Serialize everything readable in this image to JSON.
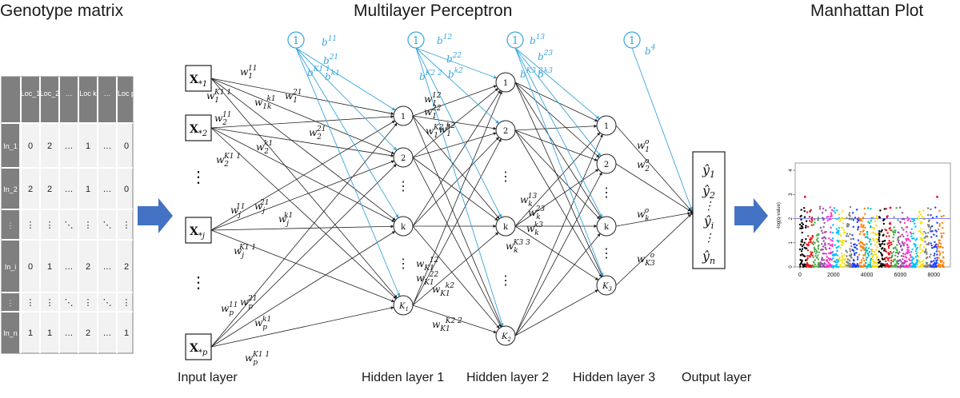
{
  "titles": {
    "genotype": "Genotype matrix",
    "mlp": "Multilayer Perceptron",
    "manhattan": "Manhattan Plot"
  },
  "layer_labels": {
    "input": "Input layer",
    "hidden1": "Hidden layer 1",
    "hidden2": "Hidden layer 2",
    "hidden3": "Hidden layer 3",
    "output": "Output layer"
  },
  "genotype_matrix": {
    "header": [
      "Loc_1",
      "Loc_2",
      "…",
      "Loc k",
      "…",
      "Loc p"
    ],
    "rows": [
      {
        "label": "In_1",
        "values": [
          "0",
          "2",
          "…",
          "1",
          "…",
          "0"
        ]
      },
      {
        "label": "In_2",
        "values": [
          "2",
          "2",
          "…",
          "1",
          "…",
          "0"
        ]
      },
      {
        "label": "⋮",
        "values": [
          "⋮",
          "⋮",
          "⋱",
          "⋮",
          "⋱",
          "⋮"
        ]
      },
      {
        "label": "In_i",
        "values": [
          "0",
          "1",
          "…",
          "2",
          "…",
          "2"
        ]
      },
      {
        "label": "⋮",
        "values": [
          "⋮",
          "⋮",
          "⋱",
          "⋮",
          "⋱",
          "⋮"
        ]
      },
      {
        "label": "In_n",
        "values": [
          "1",
          "1",
          "…",
          "2",
          "…",
          "1"
        ]
      }
    ]
  },
  "network": {
    "inputs": [
      "X*1",
      "X*2",
      "X*j",
      "X*p"
    ],
    "hidden1": [
      "1",
      "2",
      "k",
      "K1"
    ],
    "hidden2": [
      "1",
      "2",
      "k",
      "K2"
    ],
    "hidden3": [
      "1",
      "2",
      "k",
      "K3"
    ],
    "bias_node_label": "1",
    "bias_labels": [
      "b^11",
      "b^21",
      "b^K1 1",
      "b^k1",
      "b^12",
      "b^22",
      "b^K2 2",
      "b^k2",
      "b^13",
      "b^23",
      "b^K3 3",
      "b^k3",
      "b^4"
    ],
    "outputs": [
      "ŷ1",
      "ŷ2",
      "⋮",
      "ŷi",
      "⋮",
      "ŷn"
    ],
    "weight_labels": [
      "w1^11",
      "w1^K1 1",
      "w1k^k1",
      "w1^21",
      "w2^11",
      "w2^21",
      "w2^k1",
      "w2^K1 1",
      "wj^11",
      "wj^21",
      "wj^k1",
      "wj^K1 1",
      "wp^21",
      "wp^k1",
      "wp^11",
      "wp^K1 1",
      "w1^12",
      "w1^22",
      "w1^K2 2",
      "w1^k2",
      "wK1^12",
      "wK1^22",
      "wK1^k2",
      "wK1^K2 2",
      "wk^13",
      "wk^23",
      "wk^k3",
      "wk^K3 3",
      "w1^o",
      "w2^o",
      "wk^o",
      "wK3^o"
    ]
  },
  "manhattan": {
    "ylabel": "-log(q-value)",
    "yticks": [
      "0",
      "1",
      "2",
      "3",
      "4"
    ],
    "xticks": [
      "0",
      "2000",
      "4000",
      "6000",
      "8000"
    ],
    "threshold": 2,
    "colors": [
      "#000000",
      "#e41a1c",
      "#4daf4a",
      "#984ea3",
      "#ff33cc",
      "#00bfff",
      "#f5e31a",
      "#7f7f7f",
      "#1f3fff",
      "#ff7f00",
      "#00c0c0",
      "#ffd700"
    ]
  },
  "colors": {
    "bias_blue": "#3aa6dc",
    "arrow_blue": "#4472c4",
    "edge_black": "#222222"
  }
}
